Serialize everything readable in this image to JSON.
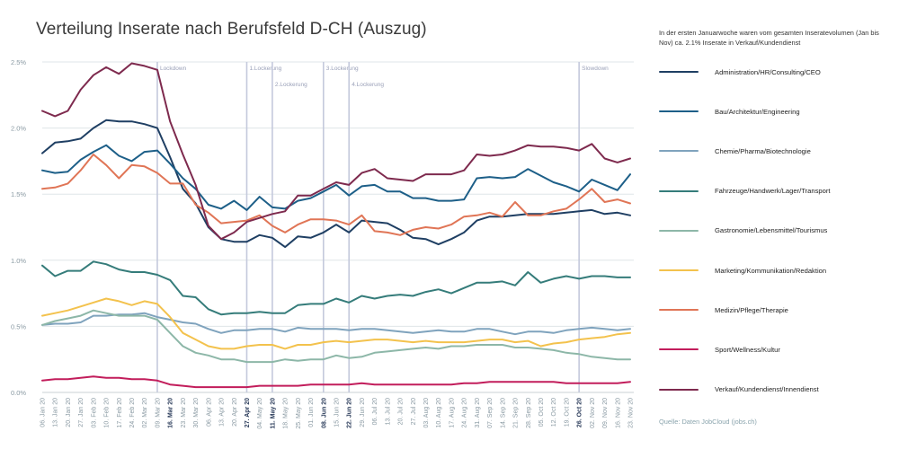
{
  "title": "Verteilung Inserate nach Berufsfeld D-CH (Auszug)",
  "note": "In der ersten Januarwoche waren vom gesamten Inseratevolumen (Jan bis Nov) ca. 2.1% Inserate in Verkauf/Kundendienst",
  "source": "Quelle: Daten JobCloud (jobs.ch)",
  "chart_data": {
    "type": "line",
    "title": "Verteilung Inserate nach Berufsfeld D-CH (Auszug)",
    "xlabel": "",
    "ylabel": "",
    "ylim": [
      0,
      2.5
    ],
    "yticks": [
      "0.0%",
      "0.5%",
      "1.0%",
      "1.5%",
      "2.0%",
      "2.5%"
    ],
    "grid": true,
    "legend_position": "right",
    "x": [
      "06. Jan 20",
      "13. Jan 20",
      "20. Jan 20",
      "27. Jan 20",
      "03. Feb 20",
      "10. Feb 20",
      "17. Feb 20",
      "24. Feb 20",
      "02. Mar 20",
      "09. Mar 20",
      "16. Mar 20",
      "23. Mar 20",
      "30. Mar 20",
      "06. Apr 20",
      "13. Apr 20",
      "20. Apr 20",
      "27. Apr 20",
      "04. May 20",
      "11. May 20",
      "18. May 20",
      "25. May 20",
      "01. Jun 20",
      "08. Jun 20",
      "15. Jun 20",
      "22. Jun 20",
      "29. Jun 20",
      "06. Jul 20",
      "13. Jul 20",
      "20. Jul 20",
      "27. Jul 20",
      "03. Aug 20",
      "10. Aug 20",
      "17. Aug 20",
      "24. Aug 20",
      "31. Aug 20",
      "07. Sep 20",
      "14. Sep 20",
      "21. Sep 20",
      "28. Sep 20",
      "05. Oct 20",
      "12. Oct 20",
      "19. Oct 20",
      "26. Oct 20",
      "02. Nov 20",
      "09. Nov 20",
      "16. Nov 20",
      "23. Nov 20"
    ],
    "bold_x": [
      "16. Mar 20",
      "27. Apr 20",
      "11. May 20",
      "08. Jun 20",
      "22. Jun 20",
      "26. Oct 20"
    ],
    "events": [
      {
        "label": "Lockdown",
        "x": "09. Mar 20"
      },
      {
        "label": "1.Lockerung",
        "x": "27. Apr 20"
      },
      {
        "label": "2.Lockerung",
        "x": "11. May 20"
      },
      {
        "label": "3.Lockerung",
        "x": "08. Jun 20"
      },
      {
        "label": "4.Lockerung",
        "x": "22. Jun 20"
      },
      {
        "label": "Slowdown",
        "x": "26. Oct 20"
      }
    ],
    "series": [
      {
        "name": "Administration/HR/Consulting/CEO",
        "color": "#1f3f63",
        "values": [
          1.81,
          1.89,
          1.9,
          1.92,
          2.0,
          2.06,
          2.05,
          2.05,
          2.03,
          2.0,
          1.78,
          1.54,
          1.43,
          1.25,
          1.16,
          1.14,
          1.14,
          1.19,
          1.17,
          1.1,
          1.18,
          1.17,
          1.21,
          1.27,
          1.21,
          1.3,
          1.29,
          1.28,
          1.23,
          1.17,
          1.16,
          1.12,
          1.16,
          1.21,
          1.3,
          1.33,
          1.33,
          1.34,
          1.35,
          1.35,
          1.35,
          1.36,
          1.37,
          1.38,
          1.35,
          1.36,
          1.34
        ]
      },
      {
        "name": "Bau/Architektur/Engineering",
        "color": "#1d5f88",
        "values": [
          1.68,
          1.66,
          1.67,
          1.76,
          1.82,
          1.87,
          1.79,
          1.75,
          1.82,
          1.83,
          1.73,
          1.62,
          1.54,
          1.42,
          1.39,
          1.45,
          1.38,
          1.48,
          1.4,
          1.39,
          1.45,
          1.47,
          1.52,
          1.57,
          1.49,
          1.56,
          1.57,
          1.52,
          1.52,
          1.47,
          1.47,
          1.45,
          1.45,
          1.46,
          1.62,
          1.63,
          1.62,
          1.63,
          1.69,
          1.64,
          1.59,
          1.56,
          1.52,
          1.61,
          1.57,
          1.53,
          1.65
        ]
      },
      {
        "name": "Chemie/Pharma/Biotechnologie",
        "color": "#7fa3bd",
        "values": [
          0.51,
          0.52,
          0.52,
          0.53,
          0.58,
          0.58,
          0.59,
          0.59,
          0.6,
          0.57,
          0.55,
          0.53,
          0.52,
          0.48,
          0.45,
          0.47,
          0.47,
          0.48,
          0.48,
          0.46,
          0.49,
          0.48,
          0.48,
          0.48,
          0.47,
          0.48,
          0.48,
          0.47,
          0.46,
          0.45,
          0.46,
          0.47,
          0.46,
          0.46,
          0.48,
          0.48,
          0.46,
          0.44,
          0.46,
          0.46,
          0.45,
          0.47,
          0.48,
          0.49,
          0.48,
          0.47,
          0.48
        ]
      },
      {
        "name": "Fahrzeuge/Handwerk/Lager/Transport",
        "color": "#357c7a",
        "values": [
          0.96,
          0.88,
          0.92,
          0.92,
          0.99,
          0.97,
          0.93,
          0.91,
          0.91,
          0.89,
          0.85,
          0.73,
          0.72,
          0.63,
          0.59,
          0.6,
          0.6,
          0.61,
          0.6,
          0.6,
          0.66,
          0.67,
          0.67,
          0.71,
          0.68,
          0.73,
          0.71,
          0.73,
          0.74,
          0.73,
          0.76,
          0.78,
          0.75,
          0.79,
          0.83,
          0.83,
          0.84,
          0.81,
          0.91,
          0.83,
          0.86,
          0.88,
          0.86,
          0.88,
          0.88,
          0.87,
          0.87
        ]
      },
      {
        "name": "Gastronomie/Lebensmittel/Tourismus",
        "color": "#8db7a8",
        "values": [
          0.51,
          0.54,
          0.56,
          0.58,
          0.62,
          0.6,
          0.58,
          0.58,
          0.58,
          0.55,
          0.45,
          0.35,
          0.3,
          0.28,
          0.25,
          0.25,
          0.23,
          0.23,
          0.23,
          0.25,
          0.24,
          0.25,
          0.25,
          0.28,
          0.26,
          0.27,
          0.3,
          0.31,
          0.32,
          0.33,
          0.34,
          0.33,
          0.35,
          0.35,
          0.36,
          0.36,
          0.36,
          0.34,
          0.34,
          0.33,
          0.32,
          0.3,
          0.29,
          0.27,
          0.26,
          0.25,
          0.25
        ]
      },
      {
        "name": "Marketing/Kommunikation/Redaktion",
        "color": "#f3c24d",
        "values": [
          0.58,
          0.6,
          0.62,
          0.65,
          0.68,
          0.71,
          0.69,
          0.66,
          0.69,
          0.67,
          0.57,
          0.45,
          0.4,
          0.35,
          0.33,
          0.33,
          0.35,
          0.36,
          0.36,
          0.33,
          0.36,
          0.36,
          0.38,
          0.39,
          0.38,
          0.39,
          0.4,
          0.4,
          0.39,
          0.38,
          0.39,
          0.38,
          0.38,
          0.38,
          0.39,
          0.4,
          0.4,
          0.38,
          0.39,
          0.35,
          0.37,
          0.38,
          0.4,
          0.41,
          0.42,
          0.44,
          0.45
        ]
      },
      {
        "name": "Medizin/Pflege/Therapie",
        "color": "#e07556",
        "values": [
          1.54,
          1.55,
          1.58,
          1.68,
          1.8,
          1.72,
          1.62,
          1.72,
          1.71,
          1.66,
          1.58,
          1.58,
          1.42,
          1.36,
          1.28,
          1.29,
          1.3,
          1.34,
          1.26,
          1.21,
          1.27,
          1.31,
          1.31,
          1.3,
          1.27,
          1.34,
          1.22,
          1.21,
          1.19,
          1.23,
          1.25,
          1.24,
          1.27,
          1.33,
          1.34,
          1.36,
          1.33,
          1.44,
          1.34,
          1.34,
          1.37,
          1.39,
          1.46,
          1.54,
          1.44,
          1.46,
          1.43
        ]
      },
      {
        "name": "Sport/Wellness/Kultur",
        "color": "#c21d5b",
        "values": [
          0.09,
          0.1,
          0.1,
          0.11,
          0.12,
          0.11,
          0.11,
          0.1,
          0.1,
          0.09,
          0.06,
          0.05,
          0.04,
          0.04,
          0.04,
          0.04,
          0.04,
          0.05,
          0.05,
          0.05,
          0.05,
          0.06,
          0.06,
          0.06,
          0.06,
          0.07,
          0.06,
          0.06,
          0.06,
          0.06,
          0.06,
          0.06,
          0.06,
          0.07,
          0.07,
          0.08,
          0.08,
          0.08,
          0.08,
          0.08,
          0.08,
          0.07,
          0.07,
          0.07,
          0.07,
          0.07,
          0.08
        ]
      },
      {
        "name": "Verkauf/Kundendienst/Innendienst",
        "color": "#7e2a4e",
        "values": [
          2.13,
          2.09,
          2.13,
          2.29,
          2.4,
          2.46,
          2.41,
          2.49,
          2.47,
          2.44,
          2.05,
          1.8,
          1.57,
          1.26,
          1.16,
          1.21,
          1.29,
          1.32,
          1.35,
          1.37,
          1.49,
          1.49,
          1.54,
          1.59,
          1.57,
          1.66,
          1.69,
          1.62,
          1.61,
          1.6,
          1.65,
          1.65,
          1.65,
          1.68,
          1.8,
          1.79,
          1.8,
          1.83,
          1.87,
          1.86,
          1.86,
          1.85,
          1.83,
          1.88,
          1.77,
          1.74,
          1.77
        ]
      }
    ]
  }
}
